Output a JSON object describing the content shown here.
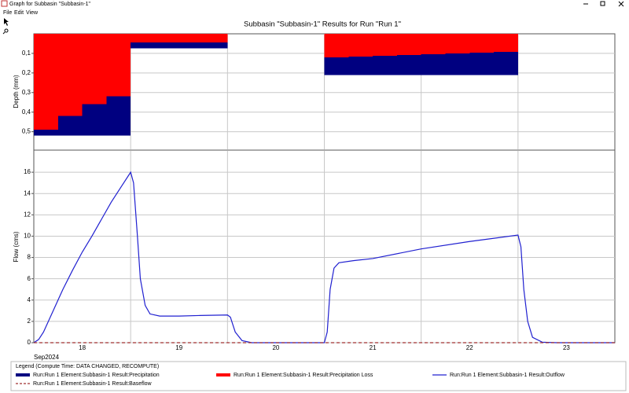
{
  "window": {
    "title": "Graph for Subbasin \"Subbasin-1\"",
    "menu": [
      "File",
      "Edit",
      "View"
    ]
  },
  "plot_title": "Subbasin \"Subbasin-1\" Results for Run \"Run 1\"",
  "legend_title": "Legend (Compute Time: DATA CHANGED, RECOMPUTE)",
  "chart_data": [
    {
      "type": "bar",
      "y_label": "Depth (mm)",
      "y_inverted": true,
      "xlim": [
        18,
        24
      ],
      "xgrid": [
        19,
        20,
        21,
        22,
        23
      ],
      "ylim": [
        0,
        0.59
      ],
      "yticks": [
        {
          "value": 0.1,
          "label": "0,1"
        },
        {
          "value": 0.2,
          "label": "0,2"
        },
        {
          "value": 0.3,
          "label": "0,3"
        },
        {
          "value": 0.4,
          "label": "0,4"
        },
        {
          "value": 0.5,
          "label": "0,5"
        }
      ],
      "x": [
        18,
        18.25,
        18.5,
        18.75,
        19,
        19.25,
        19.5,
        19.75,
        20,
        20.25,
        20.5,
        20.75,
        21,
        21.25,
        21.5,
        21.75,
        22,
        22.25,
        22.5,
        22.75,
        23,
        23.25,
        23.5,
        23.75
      ],
      "series": [
        {
          "name": "Run:Run 1 Element:Subbasin-1 Result:Precipitation",
          "color": "#000080",
          "values": [
            0.52,
            0.52,
            0.52,
            0.52,
            0.075,
            0.075,
            0.075,
            0.075,
            0,
            0,
            0,
            0,
            0.21,
            0.21,
            0.21,
            0.21,
            0.21,
            0.21,
            0.21,
            0.21,
            0,
            0,
            0,
            0
          ]
        },
        {
          "name": "Run:Run 1 Element:Subbasin-1 Result:Precipitation Loss",
          "color": "#ff0000",
          "values": [
            0.49,
            0.42,
            0.36,
            0.32,
            0.044,
            0.044,
            0.044,
            0.044,
            0,
            0,
            0,
            0,
            0.12,
            0.116,
            0.112,
            0.108,
            0.104,
            0.1,
            0.096,
            0.092,
            0,
            0,
            0,
            0
          ]
        }
      ]
    },
    {
      "type": "line",
      "y_label": "Flow (cms)",
      "xlim": [
        18,
        24
      ],
      "xgrid": [
        19,
        20,
        21,
        22,
        23
      ],
      "day_labels": [
        "18",
        "19",
        "20",
        "21",
        "22",
        "23"
      ],
      "x_period_label": "Sep2024",
      "ylim": [
        0,
        18
      ],
      "yticks": [
        0,
        2,
        4,
        6,
        8,
        10,
        12,
        14,
        16
      ],
      "x": [
        18,
        18.05,
        18.1,
        18.2,
        18.3,
        18.4,
        18.5,
        18.6,
        18.7,
        18.8,
        18.9,
        19,
        19.03,
        19.07,
        19.1,
        19.15,
        19.2,
        19.3,
        19.5,
        19.7,
        20,
        20.03,
        20.08,
        20.15,
        20.25,
        21,
        21.03,
        21.06,
        21.1,
        21.15,
        21.3,
        21.5,
        22,
        22.5,
        23,
        23.03,
        23.06,
        23.1,
        23.15,
        23.25,
        23.4,
        24
      ],
      "series": [
        {
          "name": "Run:Run 1 Element:Subbasin-1 Result:Outflow",
          "color": "#2020d0",
          "values": [
            0,
            0.3,
            1,
            3,
            5,
            6.8,
            8.5,
            10,
            11.6,
            13.2,
            14.6,
            16,
            15,
            10,
            6,
            3.5,
            2.7,
            2.5,
            2.5,
            2.55,
            2.6,
            2.4,
            1,
            0.2,
            0,
            0,
            1,
            5,
            7,
            7.5,
            7.7,
            7.9,
            8.8,
            9.5,
            10.1,
            9,
            5,
            2,
            0.5,
            0.05,
            0,
            0
          ]
        },
        {
          "name": "Run:Run 1 Element:Subbasin-1 Result:Baseflow",
          "color": "#a03030",
          "dashed": true,
          "values": [
            0,
            0,
            0,
            0,
            0,
            0,
            0,
            0,
            0,
            0,
            0,
            0,
            0,
            0,
            0,
            0,
            0,
            0,
            0,
            0,
            0,
            0,
            0,
            0,
            0,
            0,
            0,
            0,
            0,
            0,
            0,
            0,
            0,
            0,
            0,
            0,
            0,
            0,
            0,
            0,
            0,
            0
          ]
        }
      ]
    }
  ]
}
